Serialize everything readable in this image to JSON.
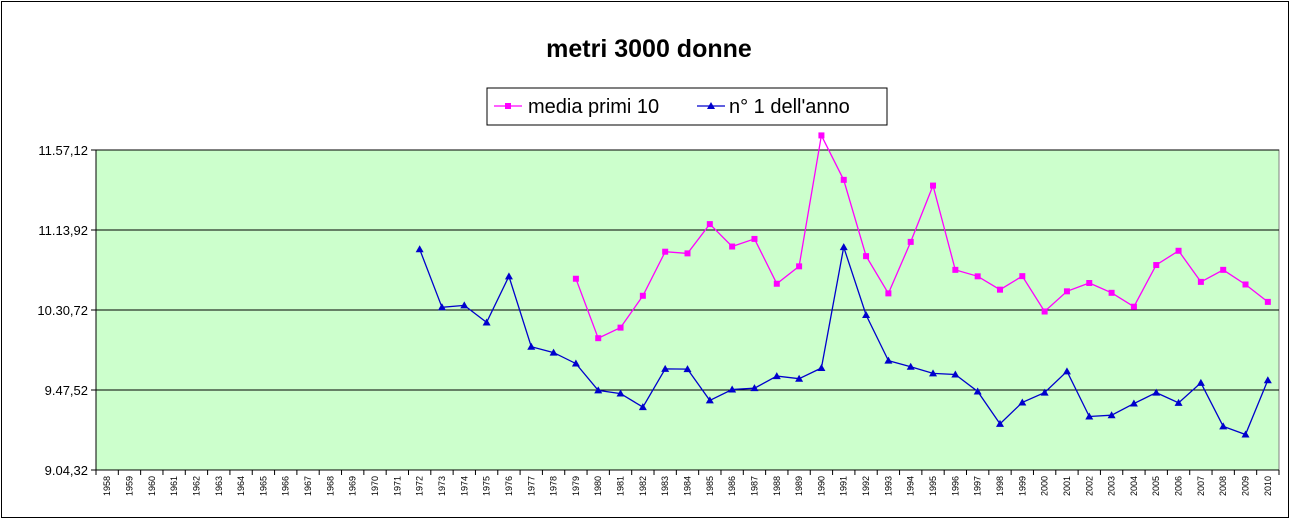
{
  "chart_data": {
    "type": "line",
    "title": "metri 3000 donne",
    "xlabel": "",
    "ylabel": "",
    "y_unit": "seconds",
    "ylim": [
      544.32,
      717.12
    ],
    "y_ticks": [
      {
        "value": 544.32,
        "label": "9.04,32"
      },
      {
        "value": 587.52,
        "label": "9.47,52"
      },
      {
        "value": 630.72,
        "label": "10.30,72"
      },
      {
        "value": 673.92,
        "label": "11.13,92"
      },
      {
        "value": 717.12,
        "label": "11.57,12"
      }
    ],
    "grid": "horizontal",
    "plot_background": "#ccffcc",
    "legend_position": "top-center",
    "categories": [
      "1958",
      "1959",
      "1960",
      "1961",
      "1962",
      "1963",
      "1964",
      "1965",
      "1966",
      "1967",
      "1968",
      "1969",
      "1970",
      "1971",
      "1972",
      "1973",
      "1974",
      "1975",
      "1976",
      "1977",
      "1978",
      "1979",
      "1980",
      "1981",
      "1982",
      "1983",
      "1984",
      "1985",
      "1986",
      "1987",
      "1988",
      "1989",
      "1990",
      "1991",
      "1992",
      "1993",
      "1994",
      "1995",
      "1996",
      "1997",
      "1998",
      "1999",
      "2000",
      "2001",
      "2002",
      "2003",
      "2004",
      "2005",
      "2006",
      "2007",
      "2008",
      "2009",
      "2010"
    ],
    "series": [
      {
        "name": "media primi 10",
        "color": "#ff00ff",
        "marker": "square",
        "values": [
          null,
          null,
          null,
          null,
          null,
          null,
          null,
          null,
          null,
          null,
          null,
          null,
          null,
          null,
          null,
          null,
          null,
          null,
          null,
          null,
          null,
          647.6,
          615.5,
          621.2,
          638.4,
          662.2,
          661.3,
          677.1,
          665.0,
          669.1,
          644.9,
          654.3,
          725.0,
          701.0,
          659.8,
          639.7,
          667.5,
          697.9,
          652.4,
          648.9,
          641.7,
          649.0,
          629.9,
          640.8,
          645.3,
          640.0,
          632.5,
          655.0,
          662.7,
          645.9,
          652.4,
          644.5,
          635.1
        ]
      },
      {
        "name": "n° 1 dell'anno",
        "color": "#0000cc",
        "marker": "triangle",
        "values": [
          null,
          null,
          null,
          null,
          null,
          null,
          null,
          null,
          null,
          null,
          null,
          null,
          null,
          null,
          663.5,
          632.2,
          633.2,
          624.0,
          648.9,
          610.9,
          607.7,
          601.8,
          587.3,
          585.6,
          578.3,
          598.9,
          598.8,
          581.9,
          587.8,
          588.5,
          595.0,
          593.6,
          599.4,
          664.7,
          628.0,
          603.4,
          600.1,
          596.5,
          595.9,
          586.7,
          569.2,
          580.8,
          586.1,
          597.6,
          573.2,
          573.9,
          580.2,
          586.1,
          580.6,
          591.4,
          567.9,
          563.5,
          592.8
        ]
      }
    ]
  }
}
